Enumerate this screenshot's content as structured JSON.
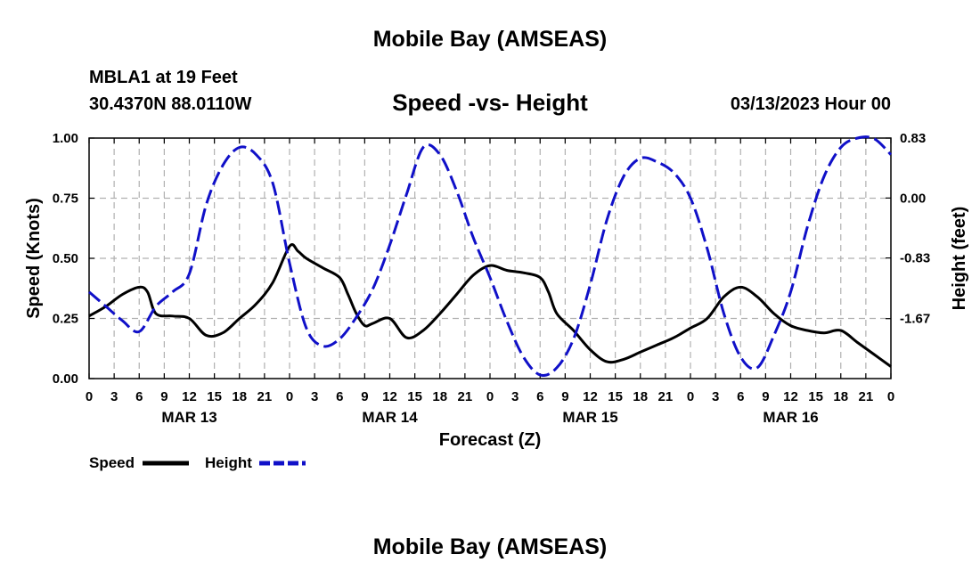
{
  "header": {
    "title": "Mobile Bay (AMSEAS)",
    "station": "MBLA1 at 19 Feet",
    "coordinates": "30.4370N  88.0110W",
    "subtitle": "Speed -vs- Height",
    "datetime": "03/13/2023 Hour 00"
  },
  "footer": {
    "title": "Mobile Bay (AMSEAS)"
  },
  "colors": {
    "speed": "#000000",
    "height": "#1010c8",
    "grid": "#b0b0b0"
  },
  "chart_data": {
    "type": "line",
    "title": "Speed -vs- Height",
    "xlabel": "Forecast (Z)",
    "ylabel": "Speed (Knots)",
    "y2label": "Height (feet)",
    "xlim": [
      0,
      96
    ],
    "ylim": [
      0,
      1
    ],
    "y2lim": [
      -2.5,
      0.83
    ],
    "x_ticks": [
      0,
      3,
      6,
      9,
      12,
      15,
      18,
      21,
      24,
      27,
      30,
      33,
      36,
      39,
      42,
      45,
      48,
      51,
      54,
      57,
      60,
      63,
      66,
      69,
      72,
      75,
      78,
      81,
      84,
      87,
      90,
      93,
      96
    ],
    "x_tick_labels": [
      "0",
      "3",
      "6",
      "9",
      "12",
      "15",
      "18",
      "21",
      "0",
      "3",
      "6",
      "9",
      "12",
      "15",
      "18",
      "21",
      "0",
      "3",
      "6",
      "9",
      "12",
      "15",
      "18",
      "21",
      "0",
      "3",
      "6",
      "9",
      "12",
      "15",
      "18",
      "21",
      "0"
    ],
    "date_labels": [
      {
        "x": 12,
        "label": "MAR 13"
      },
      {
        "x": 36,
        "label": "MAR 14"
      },
      {
        "x": 60,
        "label": "MAR 15"
      },
      {
        "x": 84,
        "label": "MAR 16"
      }
    ],
    "y_ticks": [
      0,
      0.25,
      0.5,
      0.75,
      1.0
    ],
    "y_tick_labels": [
      "0.00",
      "0.25",
      "0.50",
      "0.75",
      "1.00"
    ],
    "y2_ticks": [
      -1.67,
      -0.83,
      0.0,
      0.83
    ],
    "y2_tick_labels": [
      "-1.67",
      "-0.83",
      "0.00",
      "0.83"
    ],
    "legend": [
      {
        "name": "Speed",
        "style": "solid"
      },
      {
        "name": "Height",
        "style": "dashed"
      }
    ],
    "series": [
      {
        "name": "Speed",
        "axis": "left",
        "x": [
          0,
          2,
          4,
          6,
          7,
          8,
          10,
          12,
          14,
          16,
          18,
          20,
          22,
          24,
          25,
          26,
          28,
          30,
          31,
          32,
          33,
          34,
          36,
          38,
          40,
          42,
          44,
          46,
          48,
          50,
          52,
          54,
          55,
          56,
          58,
          60,
          62,
          64,
          66,
          68,
          70,
          72,
          74,
          76,
          78,
          80,
          82,
          84,
          86,
          88,
          90,
          92,
          94,
          96
        ],
        "values": [
          0.26,
          0.3,
          0.35,
          0.38,
          0.36,
          0.27,
          0.26,
          0.25,
          0.18,
          0.19,
          0.25,
          0.31,
          0.4,
          0.55,
          0.53,
          0.5,
          0.46,
          0.42,
          0.35,
          0.27,
          0.22,
          0.23,
          0.25,
          0.17,
          0.2,
          0.27,
          0.35,
          0.43,
          0.47,
          0.45,
          0.44,
          0.42,
          0.36,
          0.27,
          0.2,
          0.12,
          0.07,
          0.08,
          0.11,
          0.14,
          0.17,
          0.21,
          0.25,
          0.34,
          0.38,
          0.34,
          0.27,
          0.22,
          0.2,
          0.19,
          0.2,
          0.15,
          0.1,
          0.05
        ]
      },
      {
        "name": "Height",
        "axis": "right",
        "x": [
          0,
          2,
          4,
          6,
          8,
          10,
          12,
          14,
          16,
          18,
          20,
          22,
          24,
          26,
          28,
          30,
          32,
          34,
          36,
          38,
          40,
          42,
          44,
          46,
          48,
          50,
          52,
          54,
          56,
          58,
          60,
          62,
          64,
          66,
          68,
          70,
          72,
          74,
          76,
          78,
          80,
          82,
          84,
          86,
          88,
          90,
          92,
          94,
          96
        ],
        "values": [
          -1.3,
          -1.5,
          -1.7,
          -1.85,
          -1.5,
          -1.3,
          -1.05,
          -0.1,
          0.45,
          0.7,
          0.6,
          0.2,
          -0.9,
          -1.8,
          -2.05,
          -1.95,
          -1.65,
          -1.25,
          -0.65,
          0.05,
          0.7,
          0.6,
          0.1,
          -0.55,
          -1.1,
          -1.7,
          -2.2,
          -2.45,
          -2.35,
          -1.95,
          -1.2,
          -0.3,
          0.3,
          0.55,
          0.5,
          0.35,
          0.0,
          -0.7,
          -1.6,
          -2.2,
          -2.35,
          -1.9,
          -1.3,
          -0.4,
          0.3,
          0.7,
          0.83,
          0.82,
          0.6
        ]
      }
    ]
  }
}
